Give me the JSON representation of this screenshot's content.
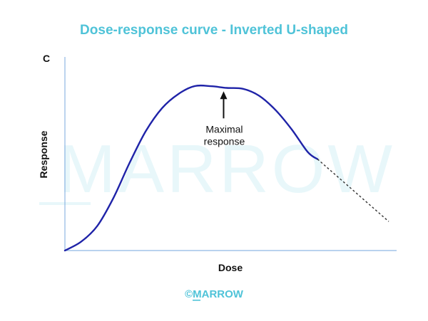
{
  "colors": {
    "title": "#4fc3d8",
    "curve": "#1f23a8",
    "axis": "#8fb7e3",
    "watermark": "#e8f7fa",
    "footer": "#4fc3d8",
    "dashed": "#333333"
  },
  "chart_data": {
    "type": "line",
    "title": "Dose-response curve - Inverted U-shaped",
    "xlabel": "Dose",
    "ylabel": "Response",
    "corner_label": "C",
    "xlim": [
      0,
      100
    ],
    "ylim": [
      0,
      100
    ],
    "grid": false,
    "legend": "none",
    "series": [
      {
        "style": "solid",
        "x": [
          0,
          5,
          10,
          15,
          20,
          25,
          30,
          35,
          40,
          45,
          50,
          55,
          60,
          65,
          70,
          75,
          78
        ],
        "y": [
          0,
          5,
          14,
          30,
          50,
          68,
          81,
          89,
          93.5,
          93.5,
          92.5,
          92,
          88,
          80,
          69,
          56,
          52
        ]
      },
      {
        "style": "dashed",
        "x": [
          78,
          100
        ],
        "y": [
          52,
          16.5
        ]
      }
    ],
    "annotations": [
      {
        "line1": "Maximal",
        "line2": "response",
        "x": 49,
        "y": 93
      }
    ]
  },
  "watermark": "MARROW",
  "footer": "©MARROW"
}
